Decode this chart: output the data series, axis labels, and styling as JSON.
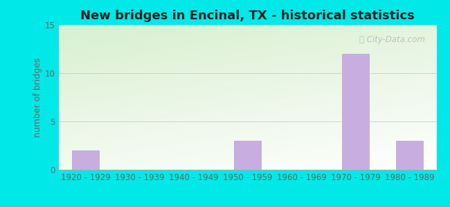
{
  "title": "New bridges in Encinal, TX - historical statistics",
  "categories": [
    "1920 - 1929",
    "1930 - 1939",
    "1940 - 1949",
    "1950 - 1959",
    "1960 - 1969",
    "1970 - 1979",
    "1980 - 1989"
  ],
  "values": [
    2,
    0,
    0,
    3,
    0,
    12,
    3
  ],
  "bar_color": "#c8aee0",
  "bar_edge_color": "#b89fd0",
  "ylabel": "number of bridges",
  "ylim": [
    0,
    15
  ],
  "yticks": [
    0,
    5,
    10,
    15
  ],
  "outer_bg_color": "#00e8e8",
  "plot_bg_topleft_color": "#d8f0d0",
  "plot_bg_bottomright_color": "#f5fff5",
  "grid_color": "#c8c8c8",
  "title_color": "#222222",
  "tick_color": "#666666",
  "ylabel_color": "#666666",
  "watermark": "City-Data.com",
  "title_fontsize": 13,
  "tick_fontsize": 8.5,
  "ylabel_fontsize": 9
}
